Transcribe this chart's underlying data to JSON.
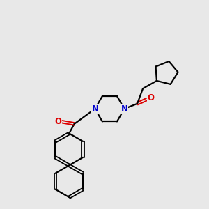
{
  "bg_color": "#e8e8e8",
  "atom_color_N": "#0000cc",
  "atom_color_O": "#dd0000",
  "line_color": "#000000",
  "linewidth": 1.6,
  "figsize": [
    3.0,
    3.0
  ],
  "dpi": 100,
  "xlim": [
    -1.8,
    2.4
  ],
  "ylim": [
    -2.6,
    2.2
  ]
}
